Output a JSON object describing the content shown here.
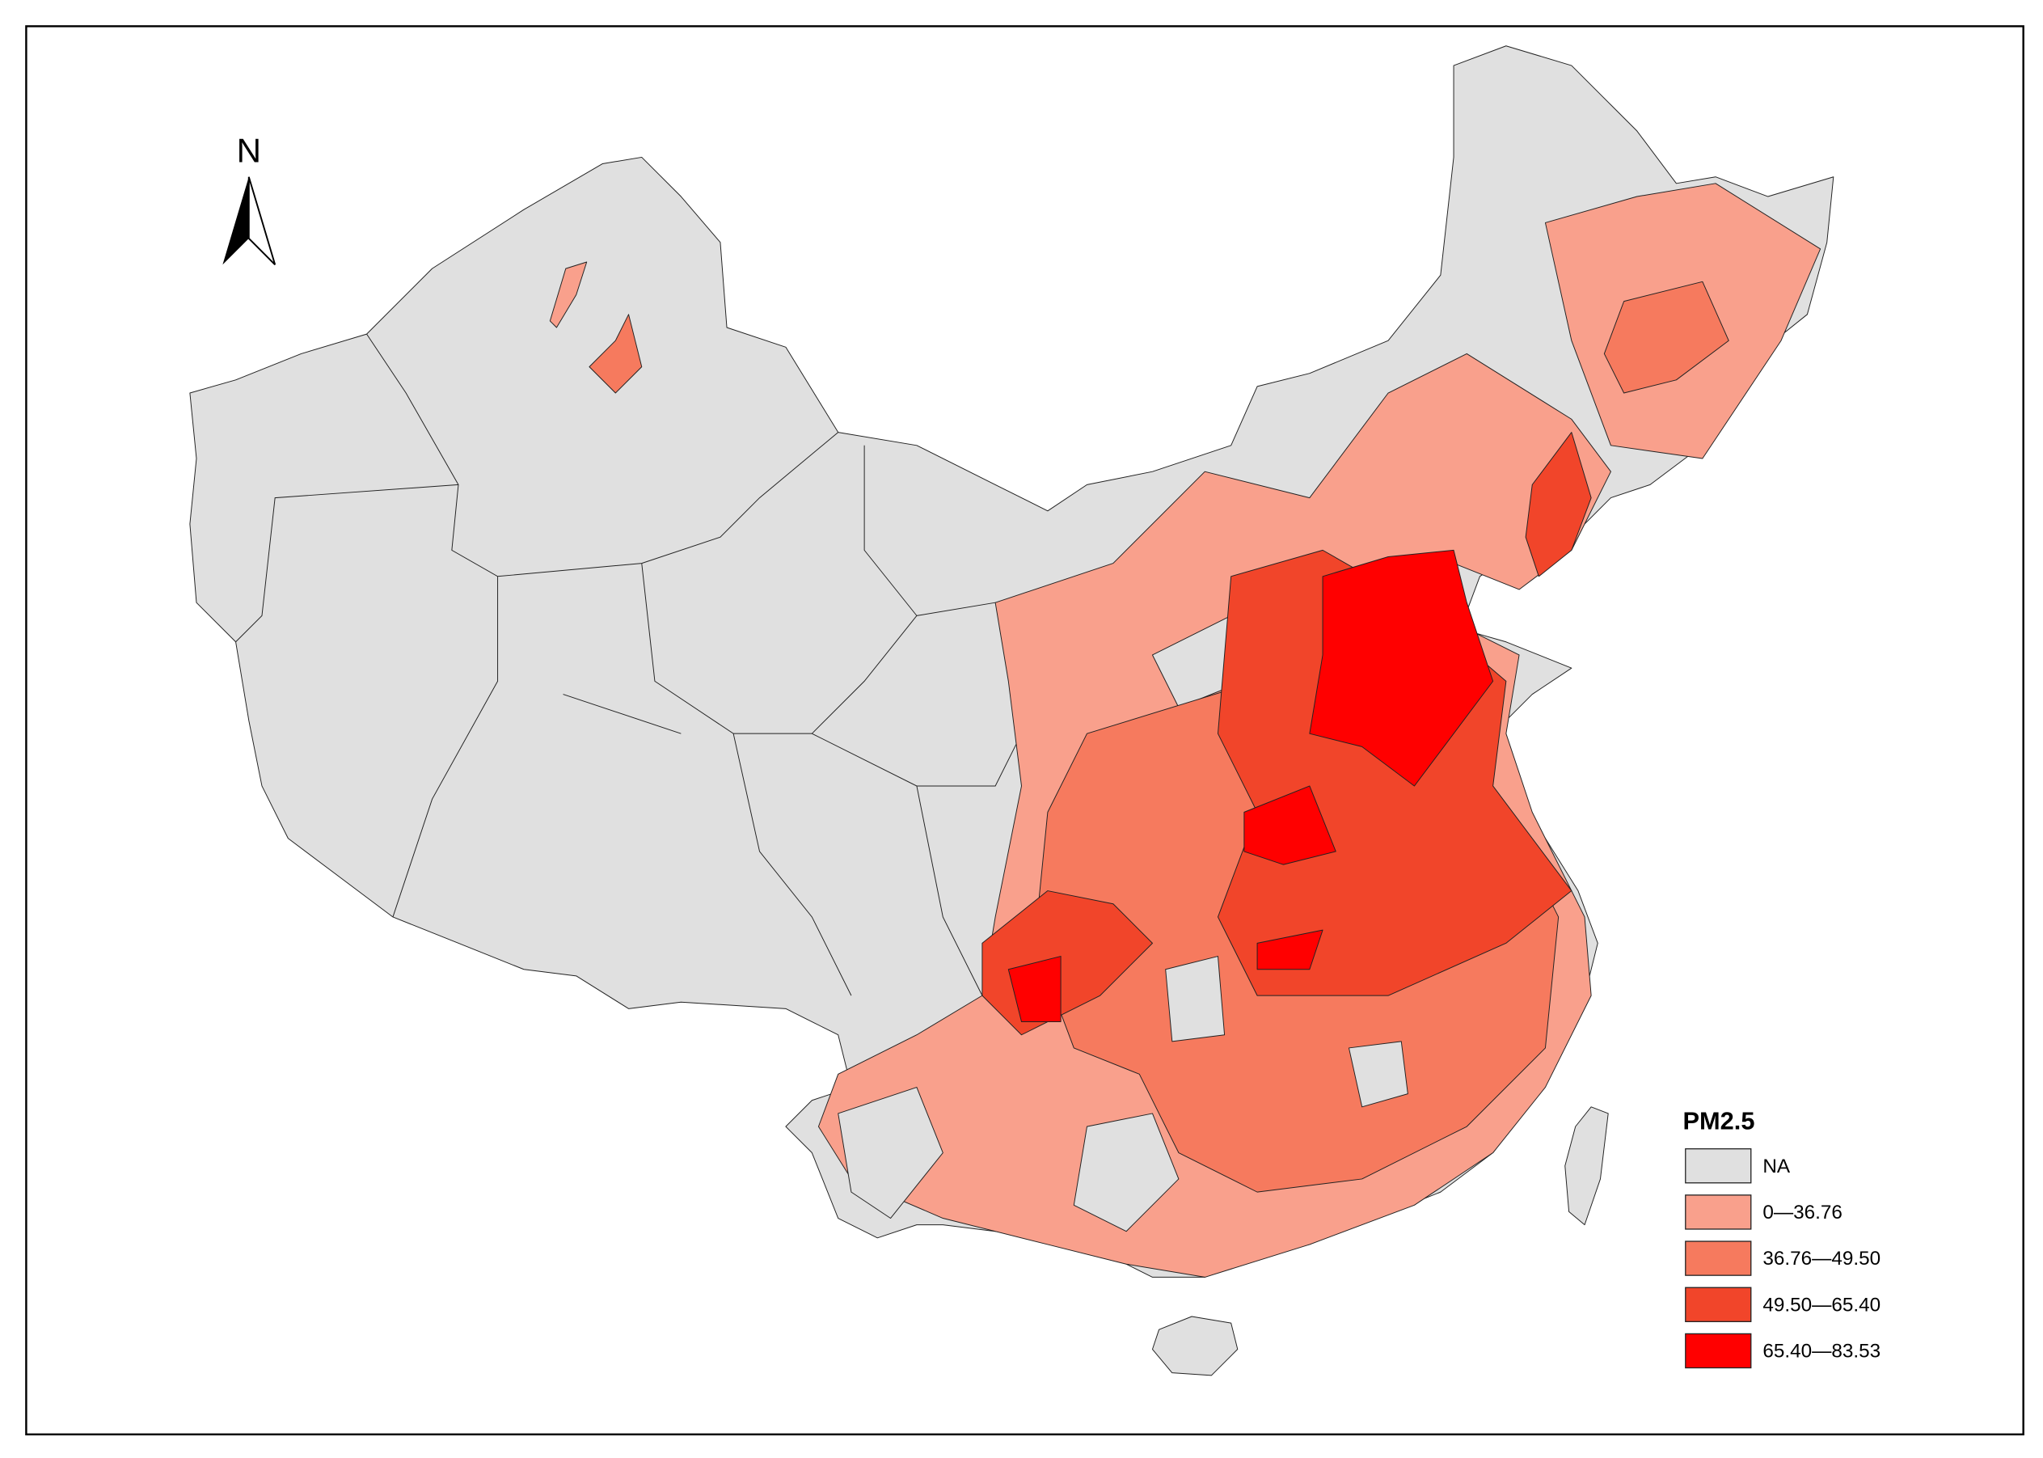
{
  "north_arrow": {
    "label": "N"
  },
  "legend": {
    "title": "PM2.5",
    "items": [
      {
        "label": "NA",
        "color": "#e0e0e0"
      },
      {
        "label": "0—36.76",
        "color": "#f9a08c"
      },
      {
        "label": "36.76—49.50",
        "color": "#f67a5e"
      },
      {
        "label": "49.50—65.40",
        "color": "#f1452a"
      },
      {
        "label": "65.40—83.53",
        "color": "#ff0000"
      }
    ]
  }
}
